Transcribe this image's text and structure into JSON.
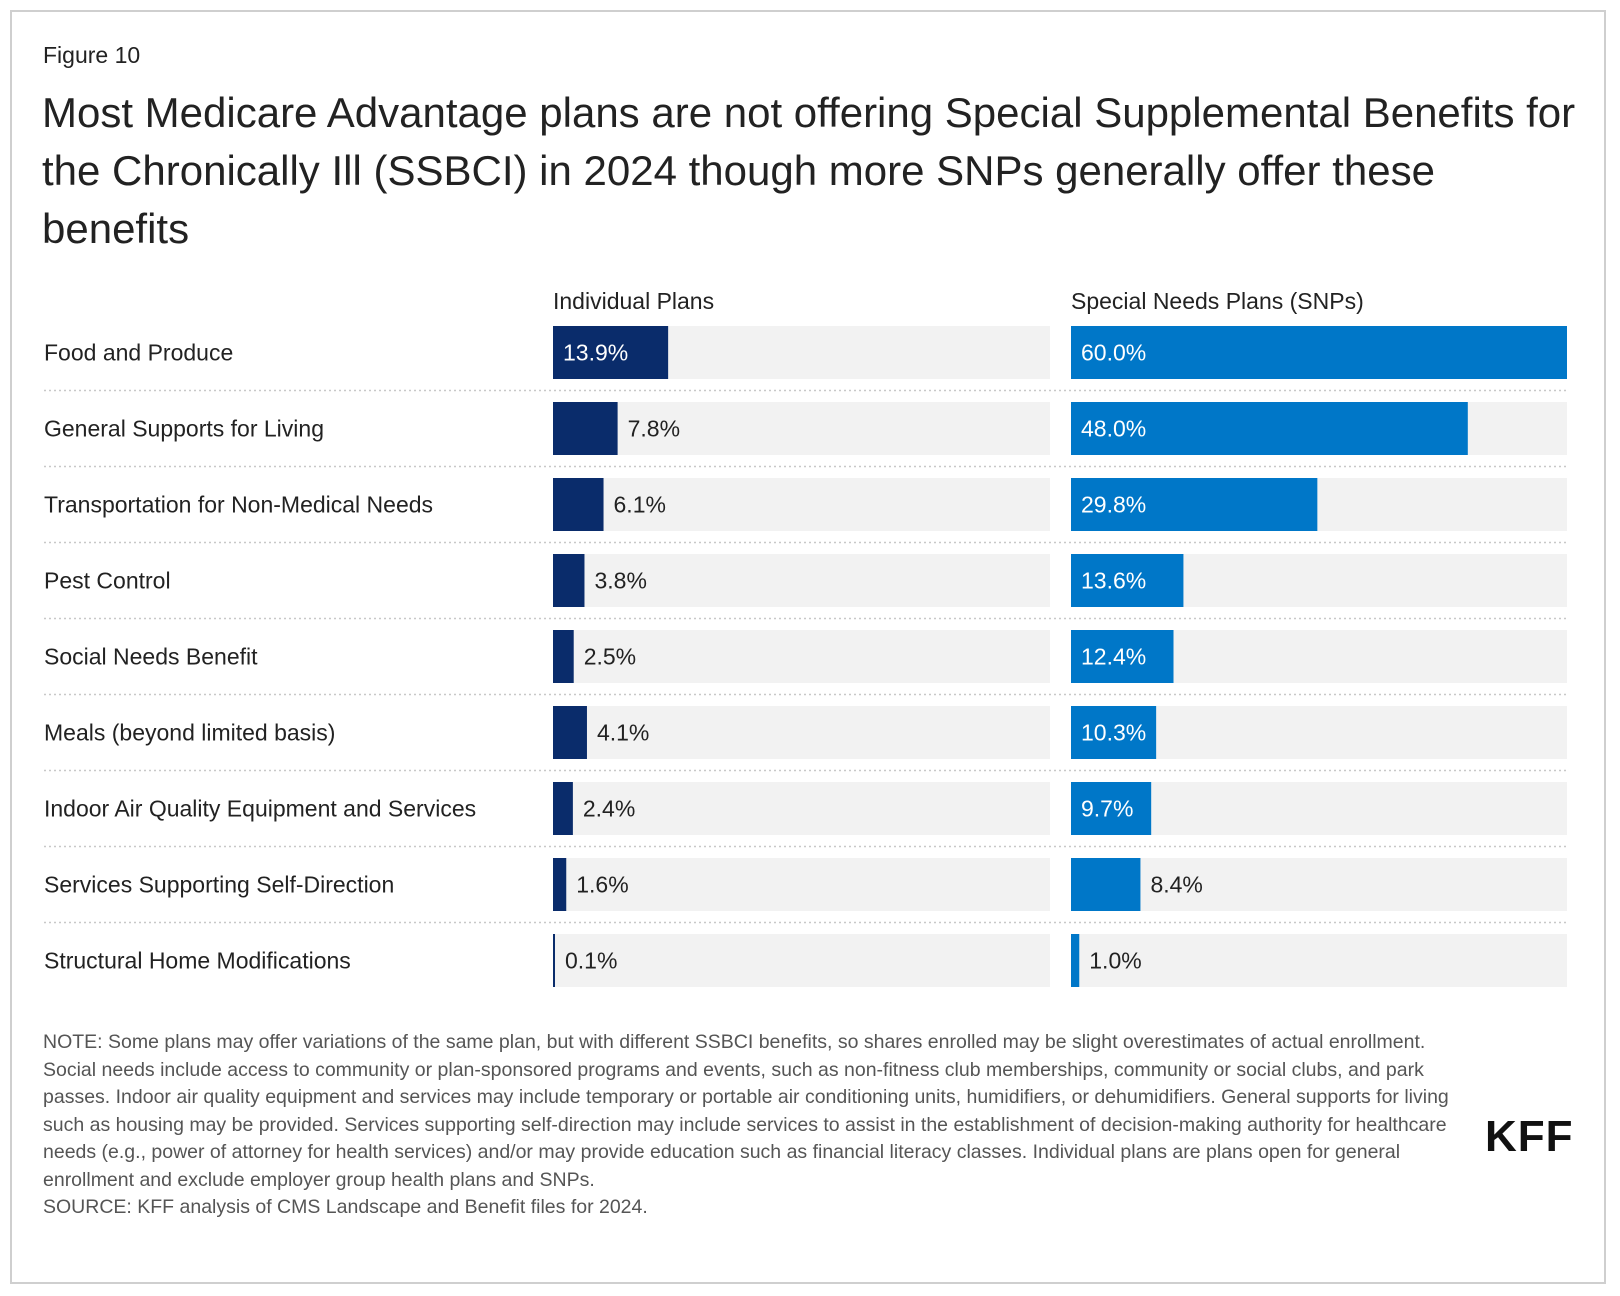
{
  "figure_label": "Figure 10",
  "title": "Most Medicare Advantage plans are not offering Special Supplemental Benefits for the Chronically Ill (SSBCI) in 2024 though more SNPs generally offer these benefits",
  "colors": {
    "individual": "#0a2c6b",
    "snp": "#0077c8",
    "track": "#f2f2f2",
    "separator": "#c8c8c8"
  },
  "chart_data": {
    "type": "bar",
    "orientation": "horizontal",
    "categories": [
      "Food and Produce",
      "General Supports for Living",
      "Transportation for Non-Medical Needs",
      "Pest Control",
      "Social Needs Benefit",
      "Meals (beyond limited basis)",
      "Indoor Air Quality Equipment and Services",
      "Services Supporting Self-Direction",
      "Structural Home Modifications"
    ],
    "series": [
      {
        "name": "Individual Plans",
        "values": [
          13.9,
          7.8,
          6.1,
          3.8,
          2.5,
          4.1,
          2.4,
          1.6,
          0.1
        ]
      },
      {
        "name": "Special Needs Plans (SNPs)",
        "values": [
          60.0,
          48.0,
          29.8,
          13.6,
          12.4,
          10.3,
          9.7,
          8.4,
          1.0
        ]
      }
    ],
    "value_suffix": "%",
    "xlim": [
      0,
      60
    ]
  },
  "notes": {
    "note": "NOTE: Some plans may offer variations of the same plan, but with different SSBCI benefits, so shares enrolled may be slight overestimates of actual enrollment. Social needs include access to community or plan-sponsored programs and events, such as non-fitness club memberships, community or social clubs, and park passes. Indoor air quality equipment and services may include temporary or portable air conditioning units, humidifiers, or dehumidifiers. General supports for living such as housing may be provided. Services supporting self-direction may include services to assist in the establishment of decision-making authority for healthcare needs (e.g., power of attorney for health services) and/or may provide education such as financial literacy classes. Individual plans are plans open for general enrollment and exclude employer group health plans and SNPs.",
    "source": "SOURCE: KFF analysis of CMS Landscape and Benefit files for 2024."
  },
  "logo_text": "KFF"
}
